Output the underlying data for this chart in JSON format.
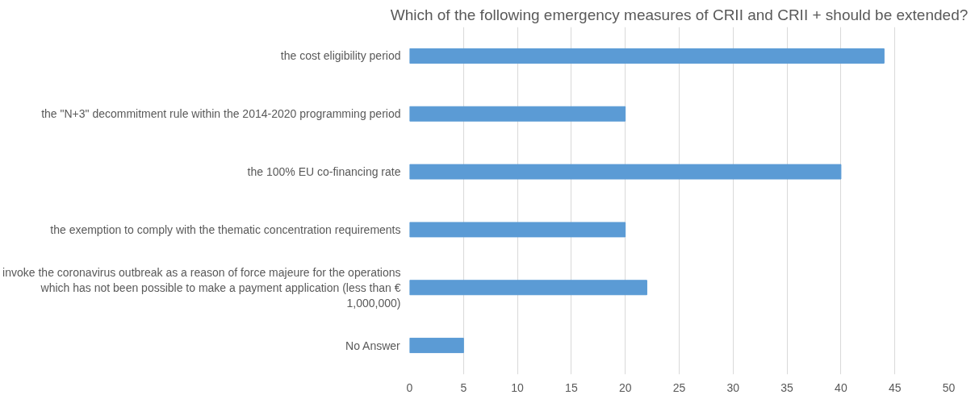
{
  "chart_data": {
    "type": "bar",
    "orientation": "horizontal",
    "title": "Which of the following emergency measures of CRII and CRII + should be extended?",
    "categories": [
      "the cost eligibility period",
      "the \"N+3\" decommitment rule within the 2014-2020 programming period",
      "the 100% EU co-financing rate",
      "the exemption to comply with the thematic concentration requirements",
      "invoke the coronavirus outbreak as a reason of force majeure for the operations which has not been possible to make a payment application (less than € 1,000,000)",
      "No Answer"
    ],
    "values": [
      44,
      20,
      40,
      20,
      22,
      5
    ],
    "color": "#5b9bd5",
    "xlim": [
      0,
      50
    ],
    "xticks": [
      0,
      5,
      10,
      15,
      20,
      25,
      30,
      35,
      40,
      45,
      50
    ],
    "grid": "x"
  }
}
